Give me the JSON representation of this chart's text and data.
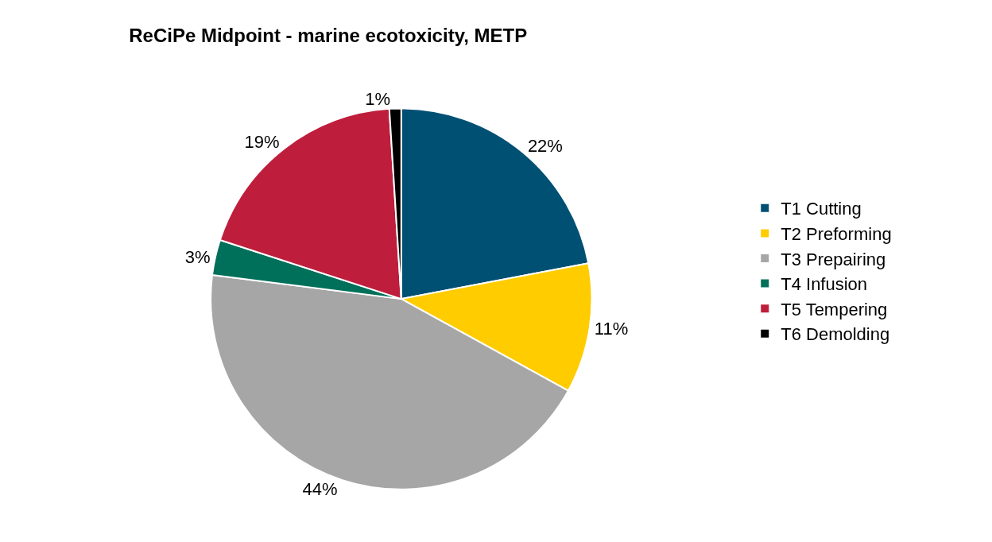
{
  "chart_data": {
    "type": "pie",
    "title": "ReCiPe Midpoint - marine ecotoxicity, METP",
    "categories": [
      "T1 Cutting",
      "T2 Preforming",
      "T3 Prepairing",
      "T4 Infusion",
      "T5 Tempering",
      "T6 Demolding"
    ],
    "values": [
      22,
      11,
      44,
      3,
      19,
      1
    ],
    "value_labels": [
      "22%",
      "11%",
      "44%",
      "3%",
      "19%",
      "1%"
    ],
    "colors": [
      "#005073",
      "#ffcc00",
      "#a6a6a6",
      "#00705a",
      "#be1e3c",
      "#000000"
    ],
    "legend": "right"
  }
}
